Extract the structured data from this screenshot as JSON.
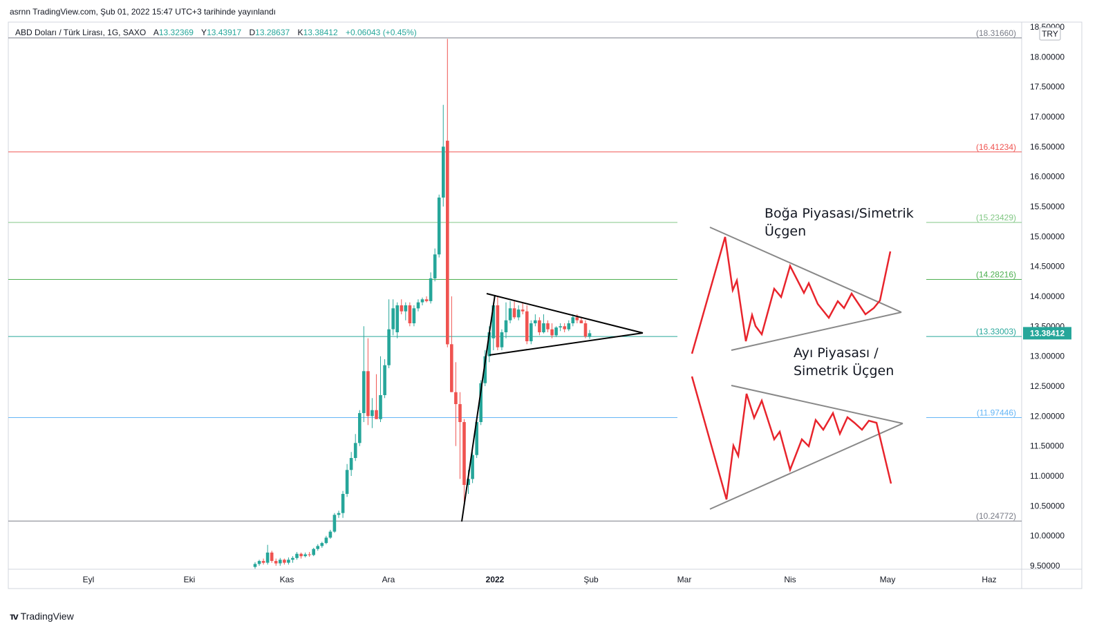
{
  "header": {
    "publish_line": "asrnn TradingView.com, Şub 01, 2022 15:47 UTC+3 tarihinde yayınlandı"
  },
  "legend": {
    "symbol": "ABD Doları / Türk Lirası, 1G, SAXO",
    "open_label": "A",
    "open": "13.32369",
    "high_label": "Y",
    "high": "13.43917",
    "low_label": "D",
    "low": "13.28637",
    "close_label": "K",
    "close": "13.38412",
    "change": "+0.06043 (+0.45%)"
  },
  "footer": {
    "brand": "TradingView",
    "logo_icon": "tradingview-logo-icon"
  },
  "colors": {
    "up": "#26a69a",
    "down": "#ef5350",
    "grid_border": "#d1d4dc",
    "level_gray": "#787b86",
    "level_red": "#ef5350",
    "level_green_light": "#81c784",
    "level_green": "#4caf50",
    "level_teal": "#26a69a",
    "level_blue": "#64b5f6",
    "price_badge": "#26a69a",
    "pattern_red": "#e8242c",
    "pattern_line": "#888888"
  },
  "chart_data": {
    "type": "candlestick",
    "currency_badge": "TRY",
    "last_price": "13.38412",
    "ylim": [
      9.5,
      18.5
    ],
    "y_ticks": [
      "18.50000",
      "18.00000",
      "17.50000",
      "17.00000",
      "16.50000",
      "16.00000",
      "15.50000",
      "15.00000",
      "14.50000",
      "14.00000",
      "13.50000",
      "13.00000",
      "12.50000",
      "12.00000",
      "11.50000",
      "11.00000",
      "10.50000",
      "10.00000",
      "9.50000"
    ],
    "x_ticks": [
      {
        "label": "Eyl",
        "bold": false
      },
      {
        "label": "Eki",
        "bold": false
      },
      {
        "label": "Kas",
        "bold": false
      },
      {
        "label": "Ara",
        "bold": false
      },
      {
        "label": "2022",
        "bold": true
      },
      {
        "label": "Şub",
        "bold": false
      },
      {
        "label": "Mar",
        "bold": false
      },
      {
        "label": "Nis",
        "bold": false
      },
      {
        "label": "May",
        "bold": false
      },
      {
        "label": "Haz",
        "bold": false
      }
    ],
    "levels": [
      {
        "value": 18.3166,
        "label": "(18.31660)",
        "color": "#787b86",
        "segment": "full"
      },
      {
        "value": 16.41234,
        "label": "(16.41234)",
        "color": "#ef5350",
        "segment": "full"
      },
      {
        "value": 15.23429,
        "label": "(15.23429)",
        "color": "#81c784",
        "segment": "split"
      },
      {
        "value": 14.28216,
        "label": "(14.28216)",
        "color": "#4caf50",
        "segment": "split"
      },
      {
        "value": 13.33003,
        "label": "(13.33003)",
        "color": "#26a69a",
        "segment": "split"
      },
      {
        "value": 11.97446,
        "label": "(11.97446)",
        "color": "#64b5f6",
        "segment": "split"
      },
      {
        "value": 10.24772,
        "label": "(10.24772)",
        "color": "#787b86",
        "segment": "full"
      }
    ],
    "candles": [
      {
        "o": 9.48,
        "h": 9.56,
        "l": 9.45,
        "c": 9.53
      },
      {
        "o": 9.53,
        "h": 9.6,
        "l": 9.5,
        "c": 9.58
      },
      {
        "o": 9.58,
        "h": 9.62,
        "l": 9.52,
        "c": 9.55
      },
      {
        "o": 9.55,
        "h": 9.85,
        "l": 9.52,
        "c": 9.72
      },
      {
        "o": 9.72,
        "h": 9.75,
        "l": 9.55,
        "c": 9.58
      },
      {
        "o": 9.58,
        "h": 9.62,
        "l": 9.5,
        "c": 9.54
      },
      {
        "o": 9.54,
        "h": 9.63,
        "l": 9.5,
        "c": 9.6
      },
      {
        "o": 9.6,
        "h": 9.62,
        "l": 9.52,
        "c": 9.55
      },
      {
        "o": 9.55,
        "h": 9.64,
        "l": 9.52,
        "c": 9.6
      },
      {
        "o": 9.6,
        "h": 9.66,
        "l": 9.55,
        "c": 9.63
      },
      {
        "o": 9.63,
        "h": 9.73,
        "l": 9.6,
        "c": 9.7
      },
      {
        "o": 9.7,
        "h": 9.72,
        "l": 9.62,
        "c": 9.66
      },
      {
        "o": 9.66,
        "h": 9.72,
        "l": 9.64,
        "c": 9.69
      },
      {
        "o": 9.69,
        "h": 9.73,
        "l": 9.65,
        "c": 9.68
      },
      {
        "o": 9.68,
        "h": 9.8,
        "l": 9.66,
        "c": 9.78
      },
      {
        "o": 9.78,
        "h": 9.86,
        "l": 9.75,
        "c": 9.83
      },
      {
        "o": 9.83,
        "h": 9.9,
        "l": 9.8,
        "c": 9.88
      },
      {
        "o": 9.88,
        "h": 10.0,
        "l": 9.86,
        "c": 9.97
      },
      {
        "o": 9.97,
        "h": 10.1,
        "l": 9.95,
        "c": 10.07
      },
      {
        "o": 10.07,
        "h": 10.38,
        "l": 10.05,
        "c": 10.35
      },
      {
        "o": 10.35,
        "h": 10.42,
        "l": 10.3,
        "c": 10.38
      },
      {
        "o": 10.38,
        "h": 10.75,
        "l": 10.3,
        "c": 10.7
      },
      {
        "o": 10.7,
        "h": 11.2,
        "l": 10.65,
        "c": 11.1
      },
      {
        "o": 11.1,
        "h": 11.4,
        "l": 11.0,
        "c": 11.3
      },
      {
        "o": 11.3,
        "h": 11.7,
        "l": 11.25,
        "c": 11.55
      },
      {
        "o": 11.55,
        "h": 12.1,
        "l": 11.5,
        "c": 12.05
      },
      {
        "o": 12.05,
        "h": 13.5,
        "l": 11.9,
        "c": 12.75
      },
      {
        "o": 12.75,
        "h": 13.3,
        "l": 11.85,
        "c": 12.0
      },
      {
        "o": 12.0,
        "h": 12.3,
        "l": 11.8,
        "c": 12.1
      },
      {
        "o": 12.1,
        "h": 12.7,
        "l": 11.95,
        "c": 11.95
      },
      {
        "o": 11.95,
        "h": 13.0,
        "l": 11.9,
        "c": 12.35
      },
      {
        "o": 12.35,
        "h": 12.95,
        "l": 12.3,
        "c": 12.85
      },
      {
        "o": 12.85,
        "h": 13.95,
        "l": 12.8,
        "c": 13.45
      },
      {
        "o": 13.45,
        "h": 13.95,
        "l": 13.35,
        "c": 13.8
      },
      {
        "o": 13.4,
        "h": 13.9,
        "l": 13.3,
        "c": 13.85
      },
      {
        "o": 13.85,
        "h": 13.95,
        "l": 13.7,
        "c": 13.75
      },
      {
        "o": 13.75,
        "h": 13.9,
        "l": 13.6,
        "c": 13.85
      },
      {
        "o": 13.85,
        "h": 13.9,
        "l": 13.5,
        "c": 13.55
      },
      {
        "o": 13.55,
        "h": 13.85,
        "l": 13.5,
        "c": 13.8
      },
      {
        "o": 13.8,
        "h": 13.95,
        "l": 13.75,
        "c": 13.9
      },
      {
        "o": 13.9,
        "h": 13.98,
        "l": 13.85,
        "c": 13.95
      },
      {
        "o": 13.95,
        "h": 14.0,
        "l": 13.9,
        "c": 13.92
      },
      {
        "o": 13.92,
        "h": 14.4,
        "l": 13.88,
        "c": 14.3
      },
      {
        "o": 14.3,
        "h": 14.8,
        "l": 14.25,
        "c": 14.7
      },
      {
        "o": 14.7,
        "h": 15.7,
        "l": 14.65,
        "c": 15.65
      },
      {
        "o": 15.65,
        "h": 17.2,
        "l": 15.5,
        "c": 16.5
      },
      {
        "o": 16.6,
        "h": 18.3,
        "l": 13.15,
        "c": 13.2
      },
      {
        "o": 13.2,
        "h": 14.0,
        "l": 12.4,
        "c": 12.4
      },
      {
        "o": 12.4,
        "h": 12.9,
        "l": 11.5,
        "c": 12.2
      },
      {
        "o": 12.2,
        "h": 12.4,
        "l": 10.95,
        "c": 11.9
      },
      {
        "o": 11.9,
        "h": 11.95,
        "l": 10.55,
        "c": 10.85
      },
      {
        "o": 10.85,
        "h": 11.1,
        "l": 10.7,
        "c": 10.95
      },
      {
        "o": 10.95,
        "h": 11.4,
        "l": 10.88,
        "c": 11.35
      },
      {
        "o": 11.35,
        "h": 11.95,
        "l": 11.3,
        "c": 11.9
      },
      {
        "o": 11.9,
        "h": 12.6,
        "l": 11.85,
        "c": 12.55
      },
      {
        "o": 12.55,
        "h": 13.1,
        "l": 12.5,
        "c": 13.0
      },
      {
        "o": 13.0,
        "h": 13.5,
        "l": 12.9,
        "c": 13.4
      },
      {
        "o": 13.3,
        "h": 13.9,
        "l": 13.1,
        "c": 13.85
      },
      {
        "o": 13.85,
        "h": 14.0,
        "l": 13.1,
        "c": 13.15
      },
      {
        "o": 13.15,
        "h": 13.45,
        "l": 13.1,
        "c": 13.4
      },
      {
        "o": 13.4,
        "h": 13.9,
        "l": 13.3,
        "c": 13.6
      },
      {
        "o": 13.6,
        "h": 13.92,
        "l": 13.55,
        "c": 13.8
      },
      {
        "o": 13.8,
        "h": 13.92,
        "l": 13.62,
        "c": 13.65
      },
      {
        "o": 13.65,
        "h": 13.85,
        "l": 13.6,
        "c": 13.78
      },
      {
        "o": 13.78,
        "h": 13.9,
        "l": 13.7,
        "c": 13.75
      },
      {
        "o": 13.75,
        "h": 13.85,
        "l": 13.2,
        "c": 13.25
      },
      {
        "o": 13.25,
        "h": 13.6,
        "l": 13.2,
        "c": 13.55
      },
      {
        "o": 13.55,
        "h": 13.7,
        "l": 13.5,
        "c": 13.6
      },
      {
        "o": 13.6,
        "h": 13.65,
        "l": 13.35,
        "c": 13.4
      },
      {
        "o": 13.4,
        "h": 13.7,
        "l": 13.38,
        "c": 13.55
      },
      {
        "o": 13.55,
        "h": 13.6,
        "l": 13.4,
        "c": 13.45
      },
      {
        "o": 13.45,
        "h": 13.55,
        "l": 13.3,
        "c": 13.35
      },
      {
        "o": 13.35,
        "h": 13.5,
        "l": 13.32,
        "c": 13.48
      },
      {
        "o": 13.48,
        "h": 13.55,
        "l": 13.42,
        "c": 13.5
      },
      {
        "o": 13.5,
        "h": 13.55,
        "l": 13.4,
        "c": 13.45
      },
      {
        "o": 13.45,
        "h": 13.6,
        "l": 13.42,
        "c": 13.55
      },
      {
        "o": 13.55,
        "h": 13.7,
        "l": 13.5,
        "c": 13.65
      },
      {
        "o": 13.65,
        "h": 13.7,
        "l": 13.55,
        "c": 13.6
      },
      {
        "o": 13.6,
        "h": 13.65,
        "l": 13.55,
        "c": 13.55
      },
      {
        "o": 13.55,
        "h": 13.6,
        "l": 13.3,
        "c": 13.33
      },
      {
        "o": 13.32369,
        "h": 13.43917,
        "l": 13.28637,
        "c": 13.38412
      }
    ],
    "annotations": [
      {
        "lines": [
          "Boğa Piyasası/Simetrik",
          "Üçgen"
        ]
      },
      {
        "lines": [
          "Ayı Piyasası /",
          "Simetrik Üçgen"
        ]
      }
    ]
  }
}
